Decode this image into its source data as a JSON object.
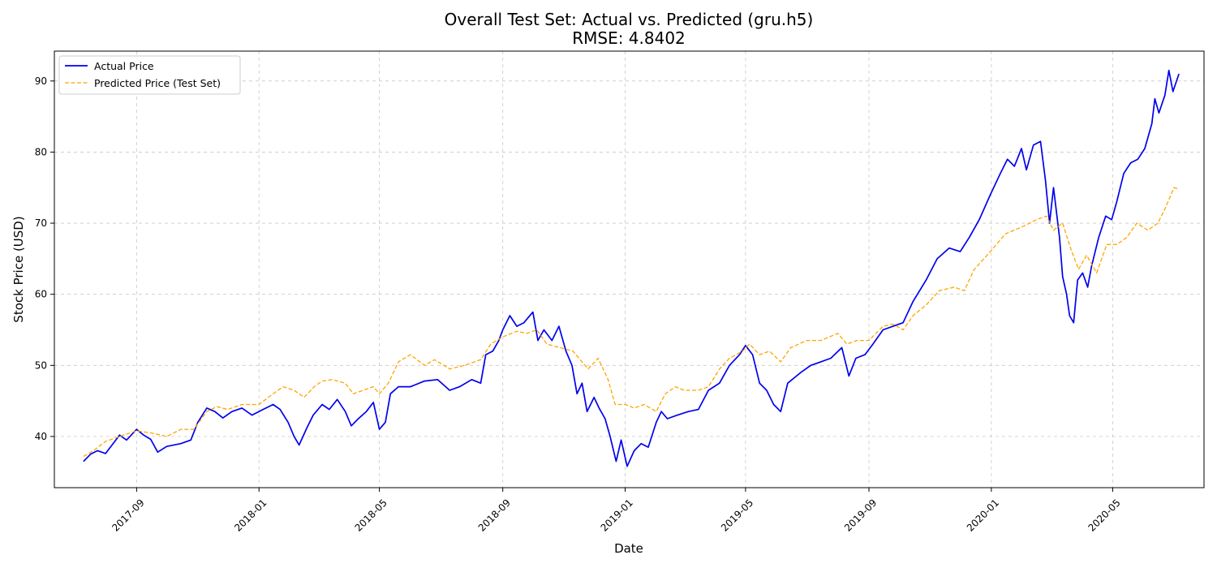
{
  "chart_data": {
    "type": "line",
    "title": "Overall Test Set: Actual vs. Predicted (gru.h5)",
    "subtitle": "RMSE: 4.8402",
    "xlabel": "Date",
    "ylabel": "Stock Price (USD)",
    "x_ticks": [
      "2017-09",
      "2018-01",
      "2018-05",
      "2018-09",
      "2019-01",
      "2019-05",
      "2019-09",
      "2020-01",
      "2020-05"
    ],
    "y_ticks": [
      40,
      50,
      60,
      70,
      80,
      90
    ],
    "xlim": [
      "2017-06-11",
      "2020-07-31"
    ],
    "ylim": [
      32.8,
      94.2
    ],
    "grid": true,
    "legend_position": "top-left",
    "series": [
      {
        "name": "Actual Price",
        "color": "#0000ee",
        "style": "solid",
        "points": [
          [
            "2017-07-10",
            36.5
          ],
          [
            "2017-07-17",
            37.5
          ],
          [
            "2017-07-24",
            38.0
          ],
          [
            "2017-08-01",
            37.6
          ],
          [
            "2017-08-08",
            38.9
          ],
          [
            "2017-08-15",
            40.2
          ],
          [
            "2017-08-22",
            39.5
          ],
          [
            "2017-09-01",
            41.0
          ],
          [
            "2017-09-08",
            40.2
          ],
          [
            "2017-09-15",
            39.6
          ],
          [
            "2017-09-22",
            37.8
          ],
          [
            "2017-10-01",
            38.6
          ],
          [
            "2017-10-15",
            39.0
          ],
          [
            "2017-10-25",
            39.5
          ],
          [
            "2017-11-01",
            42.0
          ],
          [
            "2017-11-10",
            44.0
          ],
          [
            "2017-11-18",
            43.5
          ],
          [
            "2017-11-26",
            42.6
          ],
          [
            "2017-12-05",
            43.5
          ],
          [
            "2017-12-15",
            44.0
          ],
          [
            "2017-12-25",
            43.0
          ],
          [
            "2018-01-05",
            43.8
          ],
          [
            "2018-01-15",
            44.5
          ],
          [
            "2018-01-22",
            43.8
          ],
          [
            "2018-01-30",
            42.0
          ],
          [
            "2018-02-05",
            40.0
          ],
          [
            "2018-02-10",
            38.8
          ],
          [
            "2018-02-17",
            41.0
          ],
          [
            "2018-02-24",
            43.0
          ],
          [
            "2018-03-05",
            44.5
          ],
          [
            "2018-03-12",
            43.8
          ],
          [
            "2018-03-20",
            45.2
          ],
          [
            "2018-03-28",
            43.5
          ],
          [
            "2018-04-03",
            41.5
          ],
          [
            "2018-04-10",
            42.5
          ],
          [
            "2018-04-18",
            43.5
          ],
          [
            "2018-04-25",
            44.8
          ],
          [
            "2018-05-01",
            41.0
          ],
          [
            "2018-05-07",
            42.0
          ],
          [
            "2018-05-12",
            46.0
          ],
          [
            "2018-05-20",
            47.0
          ],
          [
            "2018-06-01",
            47.0
          ],
          [
            "2018-06-15",
            47.8
          ],
          [
            "2018-06-28",
            48.0
          ],
          [
            "2018-07-10",
            46.5
          ],
          [
            "2018-07-20",
            47.0
          ],
          [
            "2018-08-01",
            48.0
          ],
          [
            "2018-08-10",
            47.5
          ],
          [
            "2018-08-15",
            51.5
          ],
          [
            "2018-08-22",
            52.0
          ],
          [
            "2018-08-28",
            53.5
          ],
          [
            "2018-09-01",
            55.0
          ],
          [
            "2018-09-08",
            57.0
          ],
          [
            "2018-09-15",
            55.5
          ],
          [
            "2018-09-22",
            56.0
          ],
          [
            "2018-10-01",
            57.5
          ],
          [
            "2018-10-06",
            53.5
          ],
          [
            "2018-10-12",
            55.0
          ],
          [
            "2018-10-20",
            53.5
          ],
          [
            "2018-10-27",
            55.5
          ],
          [
            "2018-11-03",
            52.0
          ],
          [
            "2018-11-09",
            50.0
          ],
          [
            "2018-11-14",
            46.0
          ],
          [
            "2018-11-19",
            47.5
          ],
          [
            "2018-11-24",
            43.5
          ],
          [
            "2018-12-01",
            45.5
          ],
          [
            "2018-12-06",
            44.0
          ],
          [
            "2018-12-12",
            42.5
          ],
          [
            "2018-12-17",
            40.0
          ],
          [
            "2018-12-23",
            36.5
          ],
          [
            "2018-12-28",
            39.5
          ],
          [
            "2019-01-03",
            35.8
          ],
          [
            "2019-01-10",
            38.0
          ],
          [
            "2019-01-17",
            39.0
          ],
          [
            "2019-01-24",
            38.5
          ],
          [
            "2019-02-01",
            42.0
          ],
          [
            "2019-02-06",
            43.5
          ],
          [
            "2019-02-12",
            42.5
          ],
          [
            "2019-02-22",
            43.0
          ],
          [
            "2019-03-05",
            43.5
          ],
          [
            "2019-03-15",
            43.8
          ],
          [
            "2019-03-25",
            46.5
          ],
          [
            "2019-04-05",
            47.5
          ],
          [
            "2019-04-15",
            50.0
          ],
          [
            "2019-04-25",
            51.5
          ],
          [
            "2019-05-01",
            52.8
          ],
          [
            "2019-05-08",
            51.5
          ],
          [
            "2019-05-15",
            47.5
          ],
          [
            "2019-05-22",
            46.5
          ],
          [
            "2019-05-29",
            44.5
          ],
          [
            "2019-06-05",
            43.5
          ],
          [
            "2019-06-12",
            47.5
          ],
          [
            "2019-06-25",
            49.0
          ],
          [
            "2019-07-05",
            50.0
          ],
          [
            "2019-07-15",
            50.5
          ],
          [
            "2019-07-25",
            51.0
          ],
          [
            "2019-08-05",
            52.5
          ],
          [
            "2019-08-12",
            48.5
          ],
          [
            "2019-08-19",
            51.0
          ],
          [
            "2019-08-28",
            51.5
          ],
          [
            "2019-09-05",
            53.0
          ],
          [
            "2019-09-15",
            55.0
          ],
          [
            "2019-09-25",
            55.5
          ],
          [
            "2019-10-05",
            56.0
          ],
          [
            "2019-10-15",
            59.0
          ],
          [
            "2019-10-28",
            62.0
          ],
          [
            "2019-11-08",
            65.0
          ],
          [
            "2019-11-20",
            66.5
          ],
          [
            "2019-12-01",
            66.0
          ],
          [
            "2019-12-10",
            68.0
          ],
          [
            "2019-12-20",
            70.5
          ],
          [
            "2019-12-31",
            74.0
          ],
          [
            "2020-01-10",
            77.0
          ],
          [
            "2020-01-17",
            79.0
          ],
          [
            "2020-01-24",
            78.0
          ],
          [
            "2020-01-31",
            80.5
          ],
          [
            "2020-02-05",
            77.5
          ],
          [
            "2020-02-12",
            81.0
          ],
          [
            "2020-02-19",
            81.5
          ],
          [
            "2020-02-24",
            76.0
          ],
          [
            "2020-02-28",
            70.0
          ],
          [
            "2020-03-03",
            75.0
          ],
          [
            "2020-03-09",
            68.0
          ],
          [
            "2020-03-12",
            62.5
          ],
          [
            "2020-03-16",
            60.0
          ],
          [
            "2020-03-19",
            57.0
          ],
          [
            "2020-03-23",
            56.0
          ],
          [
            "2020-03-27",
            62.0
          ],
          [
            "2020-04-01",
            63.0
          ],
          [
            "2020-04-06",
            61.0
          ],
          [
            "2020-04-10",
            64.0
          ],
          [
            "2020-04-17",
            68.0
          ],
          [
            "2020-04-24",
            71.0
          ],
          [
            "2020-04-30",
            70.5
          ],
          [
            "2020-05-05",
            73.0
          ],
          [
            "2020-05-12",
            77.0
          ],
          [
            "2020-05-19",
            78.5
          ],
          [
            "2020-05-26",
            79.0
          ],
          [
            "2020-06-02",
            80.5
          ],
          [
            "2020-06-09",
            84.0
          ],
          [
            "2020-06-12",
            87.5
          ],
          [
            "2020-06-16",
            85.5
          ],
          [
            "2020-06-22",
            88.0
          ],
          [
            "2020-06-26",
            91.5
          ],
          [
            "2020-06-30",
            88.5
          ],
          [
            "2020-07-06",
            91.0
          ]
        ]
      },
      {
        "name": "Predicted Price (Test Set)",
        "color": "#ffa500",
        "style": "dashed",
        "points": [
          [
            "2017-07-10",
            37.2
          ],
          [
            "2017-07-20",
            38.0
          ],
          [
            "2017-08-01",
            39.3
          ],
          [
            "2017-08-15",
            40.0
          ],
          [
            "2017-09-01",
            40.8
          ],
          [
            "2017-09-15",
            40.5
          ],
          [
            "2017-10-01",
            40.0
          ],
          [
            "2017-10-15",
            41.0
          ],
          [
            "2017-10-28",
            41.0
          ],
          [
            "2017-11-10",
            43.5
          ],
          [
            "2017-11-20",
            44.2
          ],
          [
            "2017-12-01",
            43.8
          ],
          [
            "2017-12-15",
            44.5
          ],
          [
            "2018-01-01",
            44.5
          ],
          [
            "2018-01-15",
            46.0
          ],
          [
            "2018-01-25",
            47.0
          ],
          [
            "2018-02-05",
            46.5
          ],
          [
            "2018-02-15",
            45.5
          ],
          [
            "2018-02-25",
            47.0
          ],
          [
            "2018-03-05",
            47.8
          ],
          [
            "2018-03-15",
            48.0
          ],
          [
            "2018-03-28",
            47.5
          ],
          [
            "2018-04-05",
            46.0
          ],
          [
            "2018-04-15",
            46.5
          ],
          [
            "2018-04-25",
            47.0
          ],
          [
            "2018-05-01",
            46.0
          ],
          [
            "2018-05-10",
            47.5
          ],
          [
            "2018-05-20",
            50.5
          ],
          [
            "2018-06-01",
            51.5
          ],
          [
            "2018-06-15",
            50.0
          ],
          [
            "2018-06-25",
            50.8
          ],
          [
            "2018-07-10",
            49.5
          ],
          [
            "2018-07-25",
            50.0
          ],
          [
            "2018-08-10",
            50.8
          ],
          [
            "2018-08-20",
            53.0
          ],
          [
            "2018-09-01",
            54.0
          ],
          [
            "2018-09-15",
            54.8
          ],
          [
            "2018-09-25",
            54.5
          ],
          [
            "2018-10-05",
            55.0
          ],
          [
            "2018-10-15",
            53.0
          ],
          [
            "2018-10-28",
            52.5
          ],
          [
            "2018-11-10",
            52.0
          ],
          [
            "2018-11-25",
            49.5
          ],
          [
            "2018-12-05",
            51.0
          ],
          [
            "2018-12-15",
            48.0
          ],
          [
            "2018-12-22",
            44.5
          ],
          [
            "2019-01-01",
            44.5
          ],
          [
            "2019-01-10",
            44.0
          ],
          [
            "2019-01-20",
            44.5
          ],
          [
            "2019-02-01",
            43.5
          ],
          [
            "2019-02-10",
            46.0
          ],
          [
            "2019-02-20",
            47.0
          ],
          [
            "2019-03-01",
            46.5
          ],
          [
            "2019-03-15",
            46.5
          ],
          [
            "2019-03-25",
            47.0
          ],
          [
            "2019-04-05",
            49.5
          ],
          [
            "2019-04-15",
            51.0
          ],
          [
            "2019-04-28",
            52.0
          ],
          [
            "2019-05-05",
            53.0
          ],
          [
            "2019-05-15",
            51.5
          ],
          [
            "2019-05-25",
            52.0
          ],
          [
            "2019-06-05",
            50.5
          ],
          [
            "2019-06-15",
            52.5
          ],
          [
            "2019-07-01",
            53.5
          ],
          [
            "2019-07-15",
            53.5
          ],
          [
            "2019-08-01",
            54.5
          ],
          [
            "2019-08-10",
            53.0
          ],
          [
            "2019-08-20",
            53.5
          ],
          [
            "2019-09-01",
            53.5
          ],
          [
            "2019-09-15",
            55.5
          ],
          [
            "2019-09-25",
            55.8
          ],
          [
            "2019-10-05",
            55.0
          ],
          [
            "2019-10-15",
            57.0
          ],
          [
            "2019-10-28",
            58.5
          ],
          [
            "2019-11-10",
            60.5
          ],
          [
            "2019-11-25",
            61.0
          ],
          [
            "2019-12-05",
            60.5
          ],
          [
            "2019-12-15",
            63.5
          ],
          [
            "2019-12-31",
            66.0
          ],
          [
            "2020-01-15",
            68.5
          ],
          [
            "2020-02-01",
            69.5
          ],
          [
            "2020-02-15",
            70.5
          ],
          [
            "2020-02-25",
            71.0
          ],
          [
            "2020-03-03",
            69.0
          ],
          [
            "2020-03-12",
            70.0
          ],
          [
            "2020-03-20",
            66.5
          ],
          [
            "2020-03-28",
            63.5
          ],
          [
            "2020-04-05",
            65.5
          ],
          [
            "2020-04-15",
            63.0
          ],
          [
            "2020-04-25",
            67.0
          ],
          [
            "2020-05-05",
            67.0
          ],
          [
            "2020-05-15",
            68.0
          ],
          [
            "2020-05-25",
            70.0
          ],
          [
            "2020-06-05",
            69.0
          ],
          [
            "2020-06-15",
            70.0
          ],
          [
            "2020-06-22",
            72.0
          ],
          [
            "2020-07-01",
            75.0
          ],
          [
            "2020-07-06",
            74.8
          ]
        ]
      }
    ]
  }
}
